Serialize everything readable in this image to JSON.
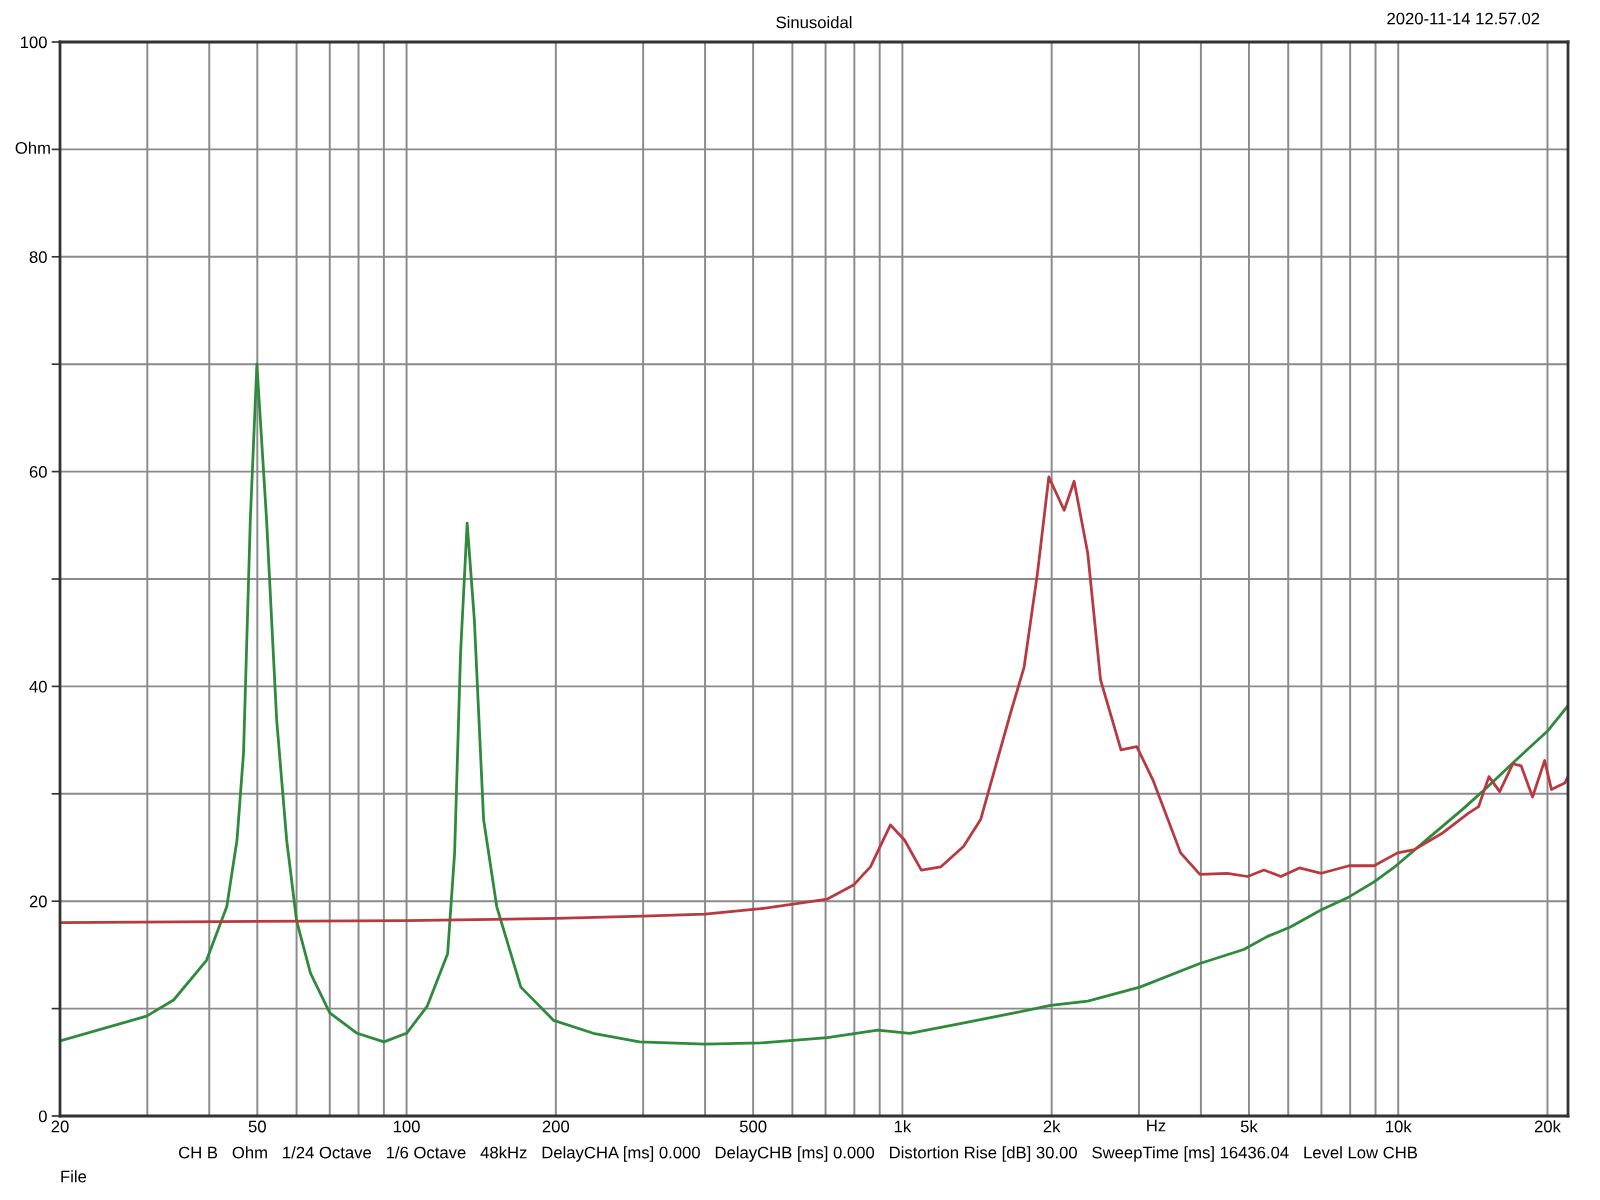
{
  "chart_data": {
    "type": "line",
    "title": "Sinusoidal",
    "xlabel": "Hz",
    "ylabel": "Ohm",
    "annotations": [
      "2020-11-14 12.57.02",
      "CH B   Ohm   1/24 Octave   1/6 Octave   48kHz   DelayCHA [ms] 0.000   DelayCHB [ms] 0.000   Distortion Rise [dB] 30.00   SweepTime [ms] 16436.04   Level Low CHB",
      "File"
    ],
    "log": "x",
    "grid": true,
    "xlim": [
      20,
      22000
    ],
    "ylim": [
      0,
      100
    ],
    "xticks": [
      20,
      {
        "value": 30,
        "label": null
      },
      {
        "value": 40,
        "label": null
      },
      50,
      {
        "value": 60,
        "label": null
      },
      {
        "value": 70,
        "label": null
      },
      {
        "value": 80,
        "label": null
      },
      {
        "value": 90,
        "label": null
      },
      100,
      200,
      {
        "value": 300,
        "label": null
      },
      {
        "value": 400,
        "label": null
      },
      500,
      {
        "value": 600,
        "label": null
      },
      {
        "value": 700,
        "label": null
      },
      {
        "value": 800,
        "label": null
      },
      {
        "value": 900,
        "label": null
      },
      {
        "value": 1000,
        "label": "1k"
      },
      {
        "value": 2000,
        "label": "2k"
      },
      {
        "value": 3000,
        "label": null
      },
      {
        "value": 4000,
        "label": null
      },
      {
        "value": 5000,
        "label": "5k"
      },
      {
        "value": 6000,
        "label": null
      },
      {
        "value": 7000,
        "label": null
      },
      {
        "value": 8000,
        "label": null
      },
      {
        "value": 9000,
        "label": null
      },
      {
        "value": 10000,
        "label": "10k"
      },
      {
        "value": 20000,
        "label": "20k"
      }
    ],
    "yticks": [
      0,
      {
        "value": 10,
        "label": null
      },
      20,
      {
        "value": 30,
        "label": null
      },
      40,
      {
        "value": 50,
        "label": null
      },
      60,
      {
        "value": 70,
        "label": null
      },
      80,
      {
        "value": 90,
        "label": null
      },
      100
    ],
    "series": [
      {
        "color": "#2f8a3c",
        "x": [
          20,
          29.9,
          33.9,
          39.5,
          43.4,
          45.5,
          46.9,
          48.4,
          49.9,
          52.2,
          54.7,
          57.3,
          60,
          64,
          70,
          79.5,
          90,
          100,
          110,
          121,
          125,
          128.5,
          132.5,
          137,
          143,
          152,
          170,
          198,
          238,
          295,
          400,
          518,
          706,
          892,
          1035,
          1308,
          1682,
          1990,
          2365,
          3012,
          3980,
          4880,
          5440,
          6060,
          7000,
          7960,
          8940,
          9900,
          11460,
          13440,
          14780,
          17240,
          20060,
          22000
        ],
        "values": [
          7.0,
          9.3,
          10.8,
          14.5,
          19.5,
          25.7,
          33.8,
          55.5,
          70.0,
          55.5,
          36.9,
          25.7,
          18.2,
          13.3,
          9.6,
          7.7,
          6.9,
          7.7,
          10.2,
          15.1,
          24.5,
          43.1,
          55.2,
          46.2,
          27.6,
          19.5,
          12.0,
          8.9,
          7.7,
          6.9,
          6.7,
          6.8,
          7.3,
          8.0,
          7.7,
          8.6,
          9.6,
          10.3,
          10.7,
          12.0,
          14.2,
          15.5,
          16.7,
          17.6,
          19.2,
          20.4,
          21.8,
          23.3,
          25.8,
          28.5,
          30.2,
          33.1,
          35.9,
          38.2
        ]
      },
      {
        "color": "#b83a40",
        "x": [
          20,
          100,
          200,
          300,
          400,
          518,
          706,
          797,
          862,
          946,
          1010,
          1092,
          1196,
          1328,
          1438,
          1652,
          1760,
          1872,
          1974,
          2120,
          2220,
          2365,
          2510,
          2760,
          2970,
          3200,
          3640,
          3980,
          4520,
          4970,
          5360,
          5800,
          6320,
          7000,
          7960,
          8940,
          9970,
          10780,
          12240,
          13860,
          14520,
          15240,
          16020,
          17030,
          17700,
          18660,
          19740,
          20370,
          21670,
          22000
        ],
        "values": [
          18.0,
          18.2,
          18.4,
          18.6,
          18.8,
          19.3,
          20.2,
          21.5,
          23.2,
          27.1,
          25.7,
          22.9,
          23.2,
          25.1,
          27.6,
          37.5,
          41.8,
          50.5,
          59.5,
          56.4,
          59.1,
          52.4,
          40.6,
          34.1,
          34.4,
          31.3,
          24.5,
          22.5,
          22.6,
          22.3,
          22.9,
          22.3,
          23.1,
          22.6,
          23.3,
          23.3,
          24.5,
          24.8,
          26.3,
          28.2,
          28.8,
          31.6,
          30.2,
          32.8,
          32.6,
          29.7,
          33.1,
          30.4,
          31.0,
          31.6
        ]
      }
    ]
  }
}
